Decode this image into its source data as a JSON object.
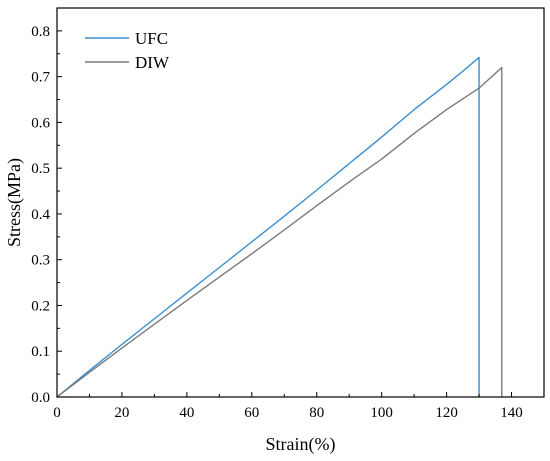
{
  "chart_data": {
    "type": "line",
    "title": "",
    "xlabel": "Strain(%)",
    "ylabel": "Stress(MPa)",
    "xlim": [
      0,
      150
    ],
    "ylim": [
      0,
      0.85
    ],
    "xticks": [
      0,
      20,
      40,
      60,
      80,
      100,
      120,
      140
    ],
    "yticks": [
      0.0,
      0.1,
      0.2,
      0.3,
      0.4,
      0.5,
      0.6,
      0.7,
      0.8
    ],
    "xtick_labels": [
      "0",
      "20",
      "40",
      "60",
      "80",
      "100",
      "120",
      "140"
    ],
    "ytick_labels": [
      "0.0",
      "0.1",
      "0.2",
      "0.3",
      "0.4",
      "0.5",
      "0.6",
      "0.7",
      "0.8"
    ],
    "grid": false,
    "legend_position": "top-left",
    "series": [
      {
        "name": "UFC",
        "color": "#3a8fd0",
        "x": [
          0,
          10,
          20,
          30,
          40,
          50,
          60,
          70,
          80,
          90,
          100,
          110,
          120,
          125,
          130,
          130
        ],
        "y": [
          0.0,
          0.058,
          0.115,
          0.171,
          0.227,
          0.283,
          0.339,
          0.395,
          0.452,
          0.51,
          0.568,
          0.628,
          0.683,
          0.712,
          0.742,
          0.0
        ]
      },
      {
        "name": "DIW",
        "color": "#7a7a7a",
        "x": [
          0,
          10,
          20,
          30,
          40,
          50,
          60,
          70,
          80,
          90,
          100,
          110,
          120,
          130,
          137,
          137
        ],
        "y": [
          0.0,
          0.054,
          0.107,
          0.159,
          0.211,
          0.262,
          0.313,
          0.365,
          0.418,
          0.47,
          0.52,
          0.576,
          0.628,
          0.675,
          0.72,
          0.0
        ]
      }
    ]
  }
}
